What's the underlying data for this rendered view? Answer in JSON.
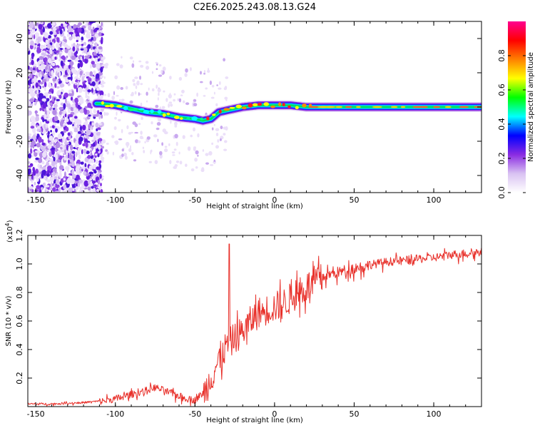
{
  "title": "C2E6.2025.243.08.13.G24",
  "chart_data": [
    {
      "type": "heatmap",
      "title": "C2E6.2025.243.08.13.G24",
      "xlabel": "Height of straight line (km)",
      "ylabel": "Frequency (Hz)",
      "xlim": [
        -155,
        130
      ],
      "ylim": [
        -50,
        50
      ],
      "xticks": [
        -150,
        -100,
        -50,
        0,
        50,
        100
      ],
      "yticks": [
        -40,
        -20,
        0,
        20,
        40
      ],
      "ridge": {
        "x": [
          -110,
          -100,
          -90,
          -80,
          -70,
          -60,
          -50,
          -45,
          -40,
          -35,
          -30,
          -20,
          -10,
          0,
          10,
          20,
          40,
          60,
          80,
          100,
          130
        ],
        "freq": [
          2,
          1,
          -1,
          -3,
          -4,
          -6,
          -7,
          -8,
          -7,
          -3,
          -2,
          0,
          1,
          1,
          1,
          0,
          0,
          0,
          0,
          0,
          0
        ]
      },
      "colorbar": {
        "label": "Normalized spectral amplitude",
        "range": [
          0,
          1
        ],
        "ticks": [
          0.0,
          0.2,
          0.4,
          0.6,
          0.8
        ],
        "colors": [
          "#ffffff",
          "#d9c2f2",
          "#8a2be2",
          "#0000ff",
          "#00ffff",
          "#00ff00",
          "#ffff00",
          "#ff8000",
          "#ff0000",
          "#ff0090"
        ]
      }
    },
    {
      "type": "line",
      "xlabel": "Height of straight line (km)",
      "ylabel": "SNR (10 * v/v)",
      "scale_label": "(x10",
      "scale_exp": "4",
      "scale_close": ")",
      "xlim": [
        -155,
        130
      ],
      "ylim": [
        0,
        1.2
      ],
      "xticks": [
        -150,
        -100,
        -50,
        0,
        50,
        100
      ],
      "yticks": [
        0.2,
        0.4,
        0.6,
        0.8,
        1.0,
        1.2
      ],
      "series": [
        {
          "name": "SNR",
          "color": "#e8302a",
          "x": [
            -155,
            -140,
            -120,
            -110,
            -100,
            -90,
            -80,
            -75,
            -70,
            -65,
            -60,
            -55,
            -50,
            -45,
            -40,
            -35,
            -30,
            -25,
            -20,
            -15,
            -10,
            -5,
            0,
            5,
            10,
            15,
            20,
            25,
            30,
            40,
            50,
            60,
            70,
            80,
            90,
            100,
            110,
            120,
            130
          ],
          "y": [
            0.02,
            0.02,
            0.03,
            0.04,
            0.06,
            0.09,
            0.12,
            0.14,
            0.12,
            0.1,
            0.08,
            0.06,
            0.05,
            0.1,
            0.22,
            0.35,
            0.45,
            0.5,
            0.55,
            0.62,
            0.68,
            0.7,
            0.72,
            0.74,
            0.78,
            0.82,
            0.86,
            0.9,
            0.92,
            0.95,
            0.98,
            1.0,
            1.02,
            1.03,
            1.04,
            1.05,
            1.07,
            1.08,
            1.09
          ]
        }
      ],
      "spikes": [
        {
          "x": -28.5,
          "y": 1.14
        }
      ]
    }
  ]
}
